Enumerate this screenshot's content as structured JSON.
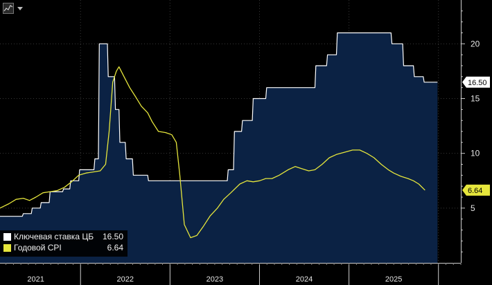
{
  "chart_data": {
    "type": "line",
    "title": "",
    "xlabel": "",
    "ylabel": "",
    "ylim": [
      0,
      24
    ],
    "yticks": [
      5,
      10,
      15,
      20
    ],
    "x_range": [
      2020.6,
      2025.75
    ],
    "year_labels": [
      {
        "label": "2021",
        "x": 2021.0
      },
      {
        "label": "2022",
        "x": 2022.0
      },
      {
        "label": "2023",
        "x": 2023.0
      },
      {
        "label": "2024",
        "x": 2024.0
      },
      {
        "label": "2025",
        "x": 2025.0
      }
    ],
    "year_boundaries": [
      2021.5,
      2022.5,
      2023.5,
      2024.5,
      2025.5
    ],
    "series": [
      {
        "name": "Ключевая ставка ЦБ",
        "color": "#ffffff",
        "fill": "#0b2244",
        "step": true,
        "last_value": "16.50",
        "points": [
          [
            2020.6,
            4.25
          ],
          [
            2020.85,
            4.25
          ],
          [
            2020.86,
            4.5
          ],
          [
            2020.95,
            4.5
          ],
          [
            2020.96,
            5.0
          ],
          [
            2021.05,
            5.0
          ],
          [
            2021.06,
            5.5
          ],
          [
            2021.15,
            5.5
          ],
          [
            2021.16,
            6.5
          ],
          [
            2021.3,
            6.5
          ],
          [
            2021.31,
            6.75
          ],
          [
            2021.38,
            6.75
          ],
          [
            2021.39,
            7.5
          ],
          [
            2021.48,
            7.5
          ],
          [
            2021.49,
            8.5
          ],
          [
            2021.65,
            8.5
          ],
          [
            2021.66,
            9.5
          ],
          [
            2021.7,
            9.5
          ],
          [
            2021.71,
            20.0
          ],
          [
            2021.8,
            20.0
          ],
          [
            2021.81,
            17.0
          ],
          [
            2021.88,
            17.0
          ],
          [
            2021.89,
            14.0
          ],
          [
            2021.93,
            14.0
          ],
          [
            2021.94,
            11.0
          ],
          [
            2022.0,
            11.0
          ],
          [
            2022.01,
            9.5
          ],
          [
            2022.08,
            9.5
          ],
          [
            2022.09,
            8.0
          ],
          [
            2022.25,
            8.0
          ],
          [
            2022.26,
            7.5
          ],
          [
            2023.14,
            7.5
          ],
          [
            2023.15,
            8.5
          ],
          [
            2023.21,
            8.5
          ],
          [
            2023.22,
            12.0
          ],
          [
            2023.3,
            12.0
          ],
          [
            2023.31,
            13.0
          ],
          [
            2023.42,
            13.0
          ],
          [
            2023.43,
            15.0
          ],
          [
            2023.57,
            15.0
          ],
          [
            2023.58,
            16.0
          ],
          [
            2024.12,
            16.0
          ],
          [
            2024.13,
            18.0
          ],
          [
            2024.25,
            18.0
          ],
          [
            2024.26,
            19.0
          ],
          [
            2024.36,
            19.0
          ],
          [
            2024.37,
            21.0
          ],
          [
            2024.97,
            21.0
          ],
          [
            2024.98,
            20.0
          ],
          [
            2025.1,
            20.0
          ],
          [
            2025.11,
            18.0
          ],
          [
            2025.22,
            18.0
          ],
          [
            2025.23,
            17.0
          ],
          [
            2025.33,
            17.0
          ],
          [
            2025.34,
            16.5
          ],
          [
            2025.49,
            16.5
          ]
        ]
      },
      {
        "name": "Годовой CPI",
        "color": "#e6e63c",
        "step": false,
        "last_value": "6.64",
        "points": [
          [
            2020.6,
            5.0
          ],
          [
            2020.7,
            5.4
          ],
          [
            2020.78,
            5.8
          ],
          [
            2020.86,
            5.9
          ],
          [
            2020.93,
            5.7
          ],
          [
            2021.0,
            6.0
          ],
          [
            2021.08,
            6.4
          ],
          [
            2021.16,
            6.5
          ],
          [
            2021.24,
            6.6
          ],
          [
            2021.32,
            6.9
          ],
          [
            2021.4,
            7.4
          ],
          [
            2021.48,
            8.0
          ],
          [
            2021.56,
            8.2
          ],
          [
            2021.64,
            8.3
          ],
          [
            2021.72,
            8.4
          ],
          [
            2021.78,
            9.0
          ],
          [
            2021.82,
            12.0
          ],
          [
            2021.86,
            16.5
          ],
          [
            2021.9,
            17.5
          ],
          [
            2021.93,
            17.9
          ],
          [
            2021.98,
            17.1
          ],
          [
            2022.05,
            16.0
          ],
          [
            2022.12,
            15.1
          ],
          [
            2022.18,
            14.3
          ],
          [
            2022.25,
            13.7
          ],
          [
            2022.3,
            12.9
          ],
          [
            2022.37,
            12.0
          ],
          [
            2022.45,
            11.9
          ],
          [
            2022.52,
            11.7
          ],
          [
            2022.57,
            11.0
          ],
          [
            2022.61,
            8.0
          ],
          [
            2022.66,
            3.5
          ],
          [
            2022.73,
            2.3
          ],
          [
            2022.8,
            2.5
          ],
          [
            2022.87,
            3.3
          ],
          [
            2022.95,
            4.3
          ],
          [
            2023.03,
            5.0
          ],
          [
            2023.1,
            5.8
          ],
          [
            2023.18,
            6.4
          ],
          [
            2023.28,
            7.2
          ],
          [
            2023.36,
            7.5
          ],
          [
            2023.43,
            7.4
          ],
          [
            2023.5,
            7.5
          ],
          [
            2023.57,
            7.7
          ],
          [
            2023.64,
            7.7
          ],
          [
            2023.72,
            8.0
          ],
          [
            2023.82,
            8.5
          ],
          [
            2023.9,
            8.8
          ],
          [
            2023.97,
            8.6
          ],
          [
            2024.05,
            8.4
          ],
          [
            2024.12,
            8.5
          ],
          [
            2024.2,
            9.0
          ],
          [
            2024.28,
            9.6
          ],
          [
            2024.36,
            9.9
          ],
          [
            2024.45,
            10.1
          ],
          [
            2024.54,
            10.3
          ],
          [
            2024.62,
            10.3
          ],
          [
            2024.7,
            10.0
          ],
          [
            2024.78,
            9.6
          ],
          [
            2024.86,
            9.0
          ],
          [
            2024.94,
            8.5
          ],
          [
            2025.0,
            8.2
          ],
          [
            2025.08,
            7.9
          ],
          [
            2025.16,
            7.7
          ],
          [
            2025.22,
            7.5
          ],
          [
            2025.28,
            7.2
          ],
          [
            2025.35,
            6.64
          ]
        ]
      }
    ],
    "legend": {
      "position": "bottom-left",
      "entries": [
        {
          "label": "Ключевая ставка ЦБ",
          "value": "16.50",
          "swatch": "#ffffff"
        },
        {
          "label": "Годовой CPI",
          "value": "6.64",
          "swatch": "#e6e63c"
        }
      ]
    }
  },
  "toolbar": {
    "icons": [
      "chart-thumbnail-icon",
      "dropdown-triangle-icon"
    ]
  },
  "colors": {
    "background": "#000000",
    "plot_fill": "#0b2244",
    "rate_line": "#ffffff",
    "cpi_line": "#e6e63c",
    "grid": "#3a3a3a",
    "text": "#e6e6e6"
  }
}
